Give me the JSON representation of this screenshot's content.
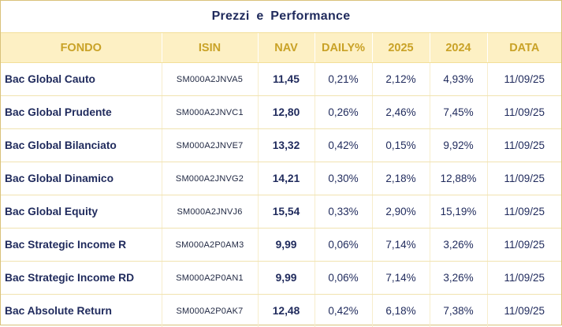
{
  "widget": {
    "title": "Prezzi e Performance"
  },
  "table": {
    "headers": [
      "FONDO",
      "ISIN",
      "NAV",
      "DAILY%",
      "2025",
      "2024",
      "DATA"
    ],
    "rows": [
      {
        "fondo": "Bac Global Cauto",
        "isin": "SM000A2JNVA5",
        "nav": "11,45",
        "daily": "0,21%",
        "y2025": "2,12%",
        "y2024": "4,93%",
        "data": "11/09/25"
      },
      {
        "fondo": "Bac Global Prudente",
        "isin": "SM000A2JNVC1",
        "nav": "12,80",
        "daily": "0,26%",
        "y2025": "2,46%",
        "y2024": "7,45%",
        "data": "11/09/25"
      },
      {
        "fondo": "Bac Global Bilanciato",
        "isin": "SM000A2JNVE7",
        "nav": "13,32",
        "daily": "0,42%",
        "y2025": "0,15%",
        "y2024": "9,92%",
        "data": "11/09/25"
      },
      {
        "fondo": "Bac Global Dinamico",
        "isin": "SM000A2JNVG2",
        "nav": "14,21",
        "daily": "0,30%",
        "y2025": "2,18%",
        "y2024": "12,88%",
        "data": "11/09/25"
      },
      {
        "fondo": "Bac Global Equity",
        "isin": "SM000A2JNVJ6",
        "nav": "15,54",
        "daily": "0,33%",
        "y2025": "2,90%",
        "y2024": "15,19%",
        "data": "11/09/25"
      },
      {
        "fondo": "Bac Strategic Income R",
        "isin": "SM000A2P0AM3",
        "nav": "9,99",
        "daily": "0,06%",
        "y2025": "7,14%",
        "y2024": "3,26%",
        "data": "11/09/25"
      },
      {
        "fondo": "Bac Strategic Income RD",
        "isin": "SM000A2P0AN1",
        "nav": "9,99",
        "daily": "0,06%",
        "y2025": "7,14%",
        "y2024": "3,26%",
        "data": "11/09/25"
      },
      {
        "fondo": "Bac Absolute Return",
        "isin": "SM000A2P0AK7",
        "nav": "12,48",
        "daily": "0,42%",
        "y2025": "6,18%",
        "y2024": "7,38%",
        "data": "11/09/25"
      }
    ]
  },
  "colors": {
    "title_text": "#1f2a5c",
    "header_bg": "#fdf0c4",
    "header_text": "#c9a227",
    "body_text": "#1f2a5c",
    "border": "#d9c27a"
  }
}
